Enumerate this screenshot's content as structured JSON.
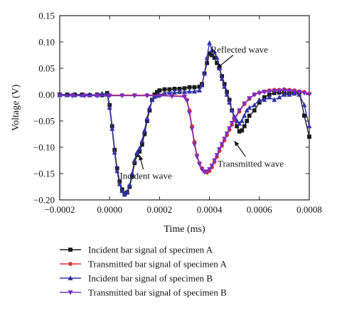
{
  "chart_data": {
    "type": "line",
    "title": "",
    "xlabel": "Time (ms)",
    "ylabel": "Voltage (V)",
    "xlim": [
      -0.0002,
      0.0008
    ],
    "ylim": [
      -0.2,
      0.15
    ],
    "xticks": [
      -0.0002,
      0.0,
      0.0002,
      0.0004,
      0.0006,
      0.0008
    ],
    "yticks": [
      -0.2,
      -0.15,
      -0.1,
      -0.05,
      0.0,
      0.05,
      0.1,
      0.15
    ],
    "xtick_labels": [
      "−0.0002",
      "0.0000",
      "0.0002",
      "0.0004",
      "0.0006",
      "0.0008"
    ],
    "ytick_labels": [
      "−0.20",
      "−0.15",
      "−0.10",
      "−0.05",
      "0.00",
      "0.05",
      "0.10",
      "0.15"
    ],
    "grid": false,
    "legend_position": "bottom",
    "annotations": [
      {
        "text": "Reflected wave",
        "x": 0.00052,
        "y": 0.085
      },
      {
        "text": "Incident wave",
        "x": 0.000145,
        "y": -0.155
      },
      {
        "text": "Transmitted wave",
        "x": 0.000565,
        "y": -0.132
      }
    ],
    "series": [
      {
        "name": "Incident bar signal of specimen A",
        "color": "#1a1a1a",
        "marker": "square",
        "x": [
          -0.0002,
          -0.00017,
          -0.00014,
          -0.00011,
          -8e-05,
          -5e-05,
          -3e-05,
          -1e-05,
          0.0,
          1e-05,
          2e-05,
          3e-05,
          4e-05,
          5e-05,
          6e-05,
          7e-05,
          8e-05,
          9e-05,
          0.0001,
          0.00011,
          0.00012,
          0.00013,
          0.00014,
          0.00015,
          0.00016,
          0.00017,
          0.00018,
          0.00019,
          0.0002,
          0.00022,
          0.00024,
          0.00026,
          0.00028,
          0.0003,
          0.00032,
          0.00034,
          0.00036,
          0.00037,
          0.00038,
          0.00039,
          0.0004,
          0.00041,
          0.00042,
          0.00043,
          0.00044,
          0.00045,
          0.00046,
          0.00047,
          0.00048,
          0.00049,
          0.0005,
          0.00051,
          0.00052,
          0.00053,
          0.00054,
          0.00055,
          0.00056,
          0.00058,
          0.0006,
          0.00062,
          0.00064,
          0.00066,
          0.00068,
          0.0007,
          0.00072,
          0.00074,
          0.00076,
          0.00078,
          0.0008
        ],
        "y": [
          0.0,
          0.0,
          0.0,
          0.0,
          -0.001,
          0.0,
          -0.001,
          0.003,
          -0.02,
          -0.06,
          -0.105,
          -0.14,
          -0.165,
          -0.18,
          -0.188,
          -0.186,
          -0.175,
          -0.155,
          -0.13,
          -0.115,
          -0.108,
          -0.095,
          -0.075,
          -0.05,
          -0.03,
          -0.01,
          0.0,
          0.005,
          0.008,
          0.01,
          0.01,
          0.011,
          0.011,
          0.012,
          0.014,
          0.014,
          0.015,
          0.02,
          0.04,
          0.06,
          0.078,
          0.075,
          0.07,
          0.06,
          0.05,
          0.035,
          0.02,
          0.005,
          -0.01,
          -0.03,
          -0.045,
          -0.06,
          -0.07,
          -0.068,
          -0.06,
          -0.05,
          -0.04,
          -0.03,
          -0.015,
          -0.005,
          0.0,
          0.003,
          0.004,
          0.003,
          0.003,
          0.004,
          0.004,
          -0.04,
          -0.08
        ]
      },
      {
        "name": "Transmitted bar signal of specimen A",
        "color": "#e8322b",
        "marker": "circle",
        "x": [
          -0.0002,
          -0.00015,
          -0.0001,
          -5e-05,
          0.0,
          5e-05,
          0.0001,
          0.00015,
          0.0002,
          0.00025,
          0.0003,
          0.00031,
          0.00032,
          0.00033,
          0.00034,
          0.00035,
          0.00036,
          0.00037,
          0.00038,
          0.00039,
          0.0004,
          0.00041,
          0.00042,
          0.00043,
          0.00044,
          0.00045,
          0.00046,
          0.00047,
          0.00048,
          0.00049,
          0.0005,
          0.00052,
          0.00054,
          0.00056,
          0.00058,
          0.0006,
          0.00062,
          0.00064,
          0.00066,
          0.00068,
          0.0007,
          0.00072,
          0.00074,
          0.00076,
          0.00078,
          0.0008
        ],
        "y": [
          -0.001,
          -0.001,
          -0.001,
          -0.001,
          -0.001,
          -0.001,
          -0.001,
          -0.001,
          -0.001,
          -0.002,
          -0.003,
          -0.01,
          -0.03,
          -0.06,
          -0.09,
          -0.115,
          -0.13,
          -0.14,
          -0.146,
          -0.148,
          -0.145,
          -0.138,
          -0.128,
          -0.118,
          -0.107,
          -0.097,
          -0.087,
          -0.077,
          -0.067,
          -0.057,
          -0.048,
          -0.032,
          -0.018,
          -0.008,
          0.0,
          0.004,
          0.006,
          0.008,
          0.009,
          0.009,
          0.01,
          0.009,
          0.008,
          0.006,
          0.005,
          0.002
        ]
      },
      {
        "name": "Incident bar signal of specimen B",
        "color": "#3232a6",
        "marker": "triangle-up",
        "x": [
          -0.0002,
          -0.00017,
          -0.00014,
          -0.00011,
          -8e-05,
          -5e-05,
          -3e-05,
          -1e-05,
          0.0,
          1e-05,
          2e-05,
          3e-05,
          4e-05,
          5e-05,
          6e-05,
          7e-05,
          8e-05,
          9e-05,
          0.0001,
          0.00011,
          0.00012,
          0.00013,
          0.00014,
          0.00015,
          0.00016,
          0.00017,
          0.00018,
          0.00019,
          0.0002,
          0.00022,
          0.00024,
          0.00026,
          0.00028,
          0.0003,
          0.00032,
          0.00034,
          0.00036,
          0.00037,
          0.00038,
          0.00039,
          0.0004,
          0.00041,
          0.00042,
          0.00043,
          0.00044,
          0.00045,
          0.00046,
          0.00047,
          0.00048,
          0.00049,
          0.0005,
          0.00051,
          0.00052,
          0.00053,
          0.00054,
          0.00055,
          0.00056,
          0.00058,
          0.0006,
          0.00062,
          0.00064,
          0.00066,
          0.00068,
          0.0007,
          0.00072,
          0.00074,
          0.00076,
          0.00078,
          0.0008
        ],
        "y": [
          -0.001,
          -0.001,
          -0.001,
          -0.001,
          0.0,
          -0.001,
          0.002,
          0.0,
          -0.025,
          -0.065,
          -0.11,
          -0.145,
          -0.17,
          -0.183,
          -0.19,
          -0.185,
          -0.172,
          -0.15,
          -0.125,
          -0.11,
          -0.102,
          -0.088,
          -0.068,
          -0.045,
          -0.025,
          -0.01,
          -0.004,
          -0.002,
          -0.001,
          0.003,
          0.004,
          0.004,
          0.005,
          0.005,
          0.006,
          0.006,
          0.008,
          0.018,
          0.04,
          0.07,
          0.098,
          0.085,
          0.08,
          0.07,
          0.05,
          0.03,
          0.015,
          0.0,
          -0.015,
          -0.03,
          -0.042,
          -0.05,
          -0.055,
          -0.05,
          -0.04,
          -0.03,
          -0.025,
          -0.02,
          -0.01,
          -0.01,
          -0.005,
          -0.01,
          -0.005,
          0.0,
          0.0,
          0.002,
          0.0,
          -0.02,
          -0.06
        ]
      },
      {
        "name": "Transmitted bar signal of specimen B",
        "color": "#7b2fc4",
        "marker": "triangle-down",
        "x": [
          -0.0002,
          -0.00015,
          -0.0001,
          -5e-05,
          0.0,
          5e-05,
          0.0001,
          0.00015,
          0.0002,
          0.00025,
          0.0003,
          0.00031,
          0.00032,
          0.00033,
          0.00034,
          0.00035,
          0.00036,
          0.00037,
          0.00038,
          0.00039,
          0.0004,
          0.00041,
          0.00042,
          0.00043,
          0.00044,
          0.00045,
          0.00046,
          0.00047,
          0.00048,
          0.00049,
          0.0005,
          0.00052,
          0.00054,
          0.00056,
          0.00058,
          0.0006,
          0.00062,
          0.00064,
          0.00066,
          0.00068,
          0.0007,
          0.00072,
          0.00074,
          0.00076,
          0.00078,
          0.0008
        ],
        "y": [
          -0.002,
          -0.002,
          -0.002,
          -0.002,
          -0.002,
          -0.002,
          -0.002,
          -0.002,
          -0.002,
          -0.003,
          -0.004,
          -0.012,
          -0.035,
          -0.065,
          -0.095,
          -0.118,
          -0.132,
          -0.142,
          -0.147,
          -0.146,
          -0.142,
          -0.135,
          -0.125,
          -0.115,
          -0.104,
          -0.094,
          -0.084,
          -0.074,
          -0.064,
          -0.054,
          -0.045,
          -0.03,
          -0.017,
          -0.007,
          0.0,
          0.003,
          0.005,
          0.006,
          0.007,
          0.007,
          0.008,
          0.007,
          0.006,
          0.005,
          0.003,
          0.0
        ]
      }
    ]
  }
}
